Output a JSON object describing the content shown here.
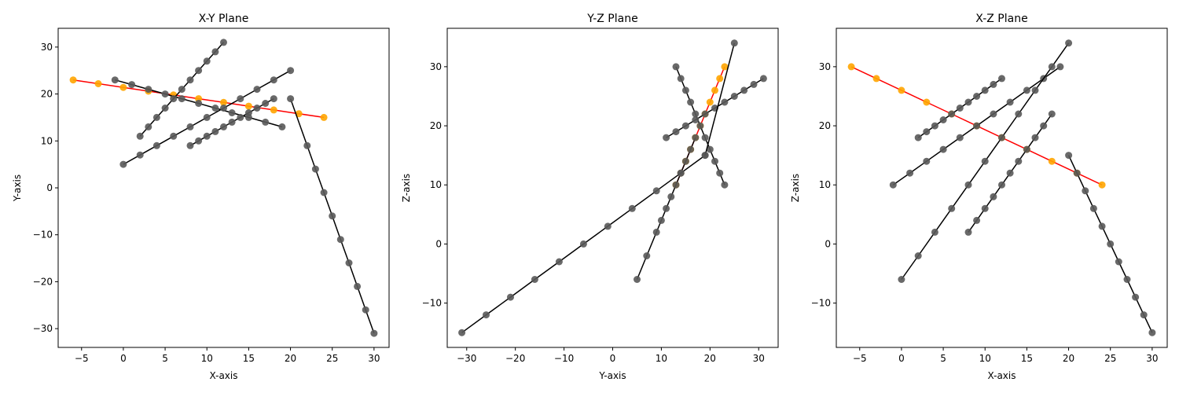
{
  "chart_data": [
    {
      "type": "scatter",
      "title": "X-Y Plane",
      "xlabel": "X-axis",
      "ylabel": "Y-axis",
      "xlim": [
        -7.8,
        31.8
      ],
      "ylim": [
        -34.0,
        34.0
      ],
      "xticks": [
        -5,
        0,
        5,
        10,
        15,
        20,
        25,
        30
      ],
      "yticks": [
        -30,
        -20,
        -10,
        0,
        10,
        20,
        30
      ],
      "grid": false,
      "highlight_color": "#ff0000",
      "highlight_marker_color": "#ffa500",
      "line_color": "#000000",
      "marker_color": "#595959",
      "series": [
        {
          "highlight": true,
          "x": [
            -6,
            -3,
            0,
            3,
            6,
            9,
            12,
            15,
            18,
            21,
            24
          ],
          "y": [
            23,
            22.2,
            21.4,
            20.6,
            19.8,
            19,
            18.2,
            17.4,
            16.6,
            15.8,
            15
          ]
        },
        {
          "highlight": false,
          "x": [
            -1,
            1,
            3,
            5,
            7,
            9,
            11,
            13,
            15,
            17,
            19
          ],
          "y": [
            23,
            22,
            21,
            20,
            19,
            18,
            17,
            16,
            15,
            14,
            13
          ]
        },
        {
          "highlight": false,
          "x": [
            2,
            3,
            4,
            5,
            6,
            7,
            8,
            9,
            10,
            11,
            12
          ],
          "y": [
            11,
            13,
            15,
            17,
            19,
            21,
            23,
            25,
            27,
            29,
            31
          ]
        },
        {
          "highlight": false,
          "x": [
            0,
            2,
            4,
            6,
            8,
            10,
            12,
            14,
            16,
            18,
            20
          ],
          "y": [
            5,
            7,
            9,
            11,
            13,
            15,
            17,
            19,
            21,
            23,
            25
          ]
        },
        {
          "highlight": false,
          "x": [
            8,
            9,
            10,
            11,
            12,
            13,
            14,
            15,
            16,
            17,
            18
          ],
          "y": [
            9,
            10,
            11,
            12,
            13,
            14,
            15,
            16,
            17,
            18,
            19
          ]
        },
        {
          "highlight": false,
          "x": [
            20,
            22,
            23,
            24,
            25,
            26,
            27,
            28,
            29,
            30
          ],
          "y": [
            19,
            9,
            4,
            -1,
            -6,
            -11,
            -16,
            -21,
            -26,
            -31
          ]
        }
      ]
    },
    {
      "type": "scatter",
      "title": "Y-Z Plane",
      "xlabel": "Y-axis",
      "ylabel": "Z-axis",
      "xlim": [
        -34.0,
        34.0
      ],
      "ylim": [
        -17.5,
        36.5
      ],
      "xticks": [
        -30,
        -20,
        -10,
        0,
        10,
        20,
        30
      ],
      "yticks": [
        -10,
        0,
        10,
        20,
        30
      ],
      "grid": false,
      "series": [
        {
          "highlight": true,
          "x": [
            13,
            14,
            15,
            16,
            17,
            18,
            19,
            20,
            21,
            22,
            23
          ],
          "y": [
            10,
            12,
            14,
            16,
            18,
            20,
            22,
            24,
            26,
            28,
            30
          ]
        },
        {
          "highlight": false,
          "x": [
            13,
            14,
            15,
            16,
            17,
            18,
            19,
            20,
            21,
            22,
            23
          ],
          "y": [
            30,
            28,
            26,
            24,
            22,
            20,
            18,
            16,
            14,
            12,
            10
          ]
        },
        {
          "highlight": false,
          "x": [
            11,
            13,
            15,
            17,
            19,
            21,
            23,
            25,
            27,
            29,
            31
          ],
          "y": [
            18,
            19,
            20,
            21,
            22,
            23,
            24,
            25,
            26,
            27,
            28
          ]
        },
        {
          "highlight": false,
          "x": [
            5,
            7,
            9,
            10,
            11,
            12,
            13,
            14,
            15,
            16,
            17
          ],
          "y": [
            -6,
            -2,
            2,
            4,
            6,
            8,
            10,
            12,
            14,
            16,
            18
          ]
        },
        {
          "highlight": false,
          "x": [
            -31,
            -26,
            -21,
            -16,
            -11,
            -6,
            -1,
            4,
            9,
            14,
            19
          ],
          "y": [
            -15,
            -12,
            -9,
            -6,
            -3,
            0,
            3,
            6,
            9,
            12,
            15
          ]
        },
        {
          "highlight": false,
          "x": [
            19,
            25
          ],
          "y": [
            15,
            34
          ]
        }
      ]
    },
    {
      "type": "scatter",
      "title": "X-Z Plane",
      "xlabel": "X-axis",
      "ylabel": "Z-axis",
      "xlim": [
        -7.8,
        31.8
      ],
      "ylim": [
        -17.5,
        36.5
      ],
      "xticks": [
        -5,
        0,
        5,
        10,
        15,
        20,
        25,
        30
      ],
      "yticks": [
        -10,
        0,
        10,
        20,
        30
      ],
      "grid": false,
      "series": [
        {
          "highlight": true,
          "x": [
            -6,
            -3,
            0,
            3,
            6,
            9,
            12,
            15,
            18,
            21,
            24
          ],
          "y": [
            30,
            28,
            26,
            24,
            22,
            20,
            18,
            16,
            14,
            12,
            10
          ]
        },
        {
          "highlight": false,
          "x": [
            2,
            3,
            4,
            5,
            6,
            7,
            8,
            9,
            10,
            11,
            12
          ],
          "y": [
            18,
            19,
            20,
            21,
            22,
            23,
            24,
            25,
            26,
            27,
            28
          ]
        },
        {
          "highlight": false,
          "x": [
            -1,
            1,
            3,
            5,
            7,
            9,
            11,
            13,
            15,
            17,
            19
          ],
          "y": [
            10,
            12,
            14,
            16,
            18,
            20,
            22,
            24,
            26,
            28,
            30
          ]
        },
        {
          "highlight": false,
          "x": [
            0,
            2,
            4,
            6,
            8,
            10,
            12,
            14,
            16,
            18,
            20
          ],
          "y": [
            -6,
            -2,
            2,
            6,
            10,
            14,
            18,
            22,
            26,
            30,
            34
          ]
        },
        {
          "highlight": false,
          "x": [
            8,
            9,
            10,
            11,
            12,
            13,
            14,
            15,
            16,
            17,
            18
          ],
          "y": [
            2,
            4,
            6,
            8,
            10,
            12,
            14,
            16,
            18,
            20,
            22
          ]
        },
        {
          "highlight": false,
          "x": [
            20,
            21,
            22,
            23,
            24,
            25,
            26,
            27,
            28,
            29,
            30
          ],
          "y": [
            15,
            12,
            9,
            6,
            3,
            0,
            -3,
            -6,
            -9,
            -12,
            -15
          ]
        }
      ]
    }
  ]
}
